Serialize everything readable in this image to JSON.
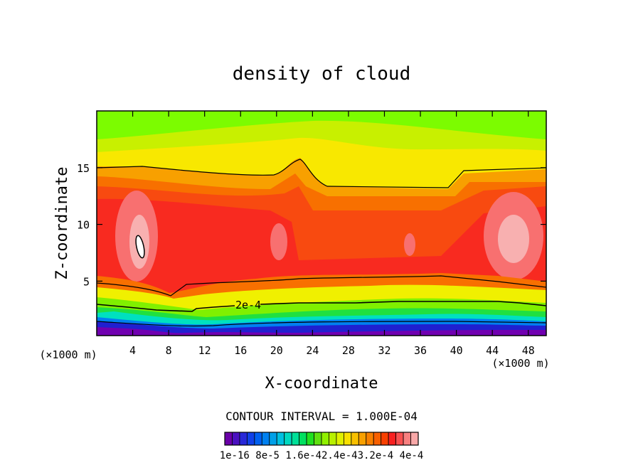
{
  "chart_data": {
    "type": "heatmap",
    "title": "density of cloud",
    "xlabel": "X-coordinate",
    "ylabel": "Z-coordinate",
    "x_unit_note": "(×1000 m)",
    "x_unit_note_right": "(×1000 m)",
    "xlim": [
      0,
      50
    ],
    "ylim": [
      0.2,
      20
    ],
    "x_ticks": [
      4,
      8,
      12,
      16,
      20,
      24,
      28,
      32,
      36,
      40,
      44,
      48
    ],
    "y_ticks": [
      5,
      10,
      15
    ],
    "contour_interval_label": "CONTOUR INTERVAL = 1.000E-04",
    "contour_line_label": "2e-4",
    "colorbar_labels": [
      "1e-16",
      "8e-5",
      "1.6e-4",
      "2.4e-4",
      "3.2e-4",
      "4e-4"
    ],
    "colorbar_label_text": "1e-16 8e-5 1.6e-42.4e-43.2e-4 4e-4",
    "colorbar_colors": [
      "#6a00a8",
      "#4a10c0",
      "#2828d8",
      "#1040e8",
      "#0060f0",
      "#0080f0",
      "#00a0e8",
      "#00c0e0",
      "#00d8c0",
      "#00e098",
      "#00e060",
      "#20e020",
      "#60e010",
      "#90f000",
      "#b8f000",
      "#e0f000",
      "#f8e000",
      "#f8c000",
      "#f8a000",
      "#f88000",
      "#f86000",
      "#f84000",
      "#f82020",
      "#f85050",
      "#f88080",
      "#f8a8a8"
    ],
    "level_colors": {
      "top": "#7cfc00",
      "upper_yellow_green": "#c8f000",
      "yellow": "#f8e800",
      "orange": "#f8a000",
      "dark_orange": "#f87000",
      "red_orange": "#f84a10",
      "red": "#f82a20",
      "pink": "#f87070",
      "light_pink": "#f8b0b0",
      "lower_yellow": "#f0f000",
      "lower_green": "#80f000",
      "green": "#20e040",
      "cyan": "#00e0c0",
      "blue": "#0080f0",
      "dark_blue": "#2020d0",
      "purple": "#7000b0"
    }
  }
}
